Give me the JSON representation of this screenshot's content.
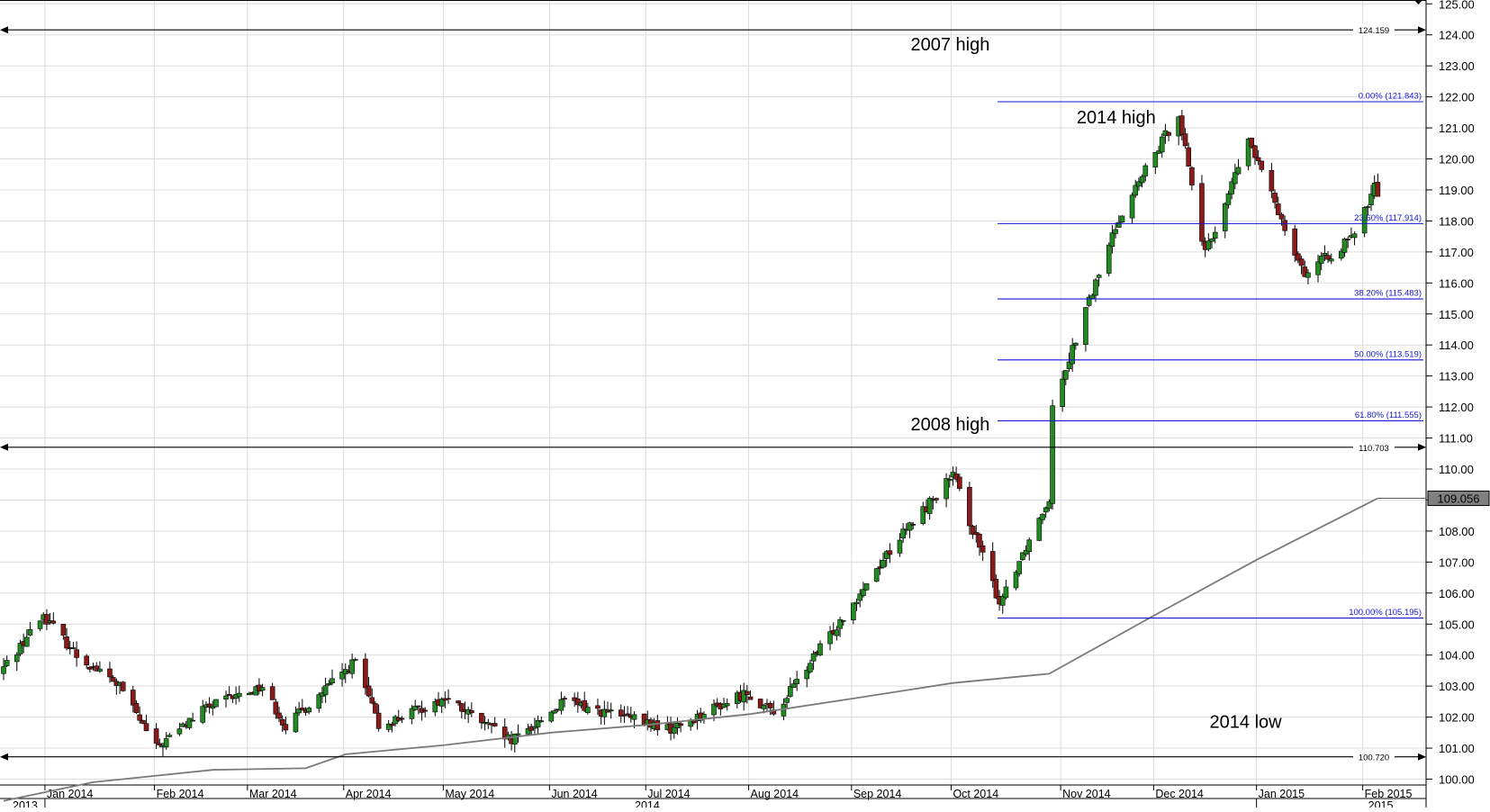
{
  "chart_data": {
    "type": "candlestick",
    "y_axis": {
      "min": 99.7,
      "max": 125.05,
      "position": "right",
      "ticks": [
        "100.00",
        "101.00",
        "102.00",
        "103.00",
        "104.00",
        "105.00",
        "106.00",
        "107.00",
        "108.00",
        "109.00",
        "110.00",
        "111.00",
        "112.00",
        "113.00",
        "114.00",
        "115.00",
        "116.00",
        "117.00",
        "118.00",
        "119.00",
        "120.00",
        "121.00",
        "122.00",
        "123.00",
        "124.00",
        "125.00"
      ]
    },
    "x_axis": {
      "months": [
        {
          "label": "Jan 2014",
          "date": "2014-01-01"
        },
        {
          "label": "Feb 2014",
          "date": "2014-02-03"
        },
        {
          "label": "Mar 2014",
          "date": "2014-03-03"
        },
        {
          "label": "Apr 2014",
          "date": "2014-04-01"
        },
        {
          "label": "May 2014",
          "date": "2014-05-01"
        },
        {
          "label": "Jun 2014",
          "date": "2014-06-02"
        },
        {
          "label": "Jul 2014",
          "date": "2014-07-01"
        },
        {
          "label": "Aug 2014",
          "date": "2014-08-01"
        },
        {
          "label": "Sep 2014",
          "date": "2014-09-01"
        },
        {
          "label": "Oct 2014",
          "date": "2014-10-01"
        },
        {
          "label": "Nov 2014",
          "date": "2014-11-03"
        },
        {
          "label": "Dec 2014",
          "date": "2014-12-01"
        },
        {
          "label": "Jan 2015",
          "date": "2015-01-01"
        },
        {
          "label": "Feb 2015",
          "date": "2015-02-02"
        }
      ],
      "years": [
        {
          "label": "2013",
          "position": "left edge"
        },
        {
          "label": "2014",
          "position": "center"
        },
        {
          "label": "2015",
          "position": "under Feb 2015"
        }
      ]
    },
    "ohlc_start": "2013-12-19",
    "ohlc_end": "2015-02-06",
    "ohlc_key_points": [
      {
        "date": "2013-12-19",
        "close": 103.6
      },
      {
        "date": "2013-12-31",
        "close": 105.3
      },
      {
        "date": "2014-01-10",
        "close": 104.0
      },
      {
        "date": "2014-01-23",
        "close": 103.0
      },
      {
        "date": "2014-02-03",
        "close": 101.0
      },
      {
        "date": "2014-02-18",
        "close": 102.3
      },
      {
        "date": "2014-03-07",
        "close": 103.0
      },
      {
        "date": "2014-03-14",
        "close": 101.7
      },
      {
        "date": "2014-04-04",
        "close": 103.8
      },
      {
        "date": "2014-04-11",
        "close": 101.7
      },
      {
        "date": "2014-05-01",
        "close": 102.6
      },
      {
        "date": "2014-05-21",
        "close": 101.2
      },
      {
        "date": "2014-06-06",
        "close": 102.5
      },
      {
        "date": "2014-07-08",
        "close": 101.6
      },
      {
        "date": "2014-07-31",
        "close": 102.8
      },
      {
        "date": "2014-08-08",
        "close": 102.1
      },
      {
        "date": "2014-08-20",
        "close": 103.9
      },
      {
        "date": "2014-09-12",
        "close": 107.4
      },
      {
        "date": "2014-10-01",
        "close": 109.8
      },
      {
        "date": "2014-10-15",
        "close": 105.7
      },
      {
        "date": "2014-10-30",
        "close": 109.1
      },
      {
        "date": "2014-10-31",
        "close": 112.1
      },
      {
        "date": "2014-11-20",
        "close": 118.1
      },
      {
        "date": "2014-12-08",
        "close": 121.5
      },
      {
        "date": "2014-12-16",
        "close": 116.9
      },
      {
        "date": "2014-12-29",
        "close": 120.6
      },
      {
        "date": "2015-01-15",
        "close": 116.3
      },
      {
        "date": "2015-01-30",
        "close": 117.5
      },
      {
        "date": "2015-02-05",
        "close": 119.1
      },
      {
        "date": "2015-02-06",
        "close": 118.9
      }
    ],
    "moving_average": {
      "current_value": "109.056",
      "points": [
        {
          "date": "2013-12-19",
          "value": 99.3
        },
        {
          "date": "2014-01-15",
          "value": 99.9
        },
        {
          "date": "2014-02-20",
          "value": 100.3
        },
        {
          "date": "2014-03-20",
          "value": 100.35
        },
        {
          "date": "2014-04-01",
          "value": 100.8
        },
        {
          "date": "2014-05-01",
          "value": 101.1
        },
        {
          "date": "2014-06-02",
          "value": 101.5
        },
        {
          "date": "2014-07-01",
          "value": 101.75
        },
        {
          "date": "2014-08-01",
          "value": 102.1
        },
        {
          "date": "2014-09-01",
          "value": 102.6
        },
        {
          "date": "2014-10-01",
          "value": 103.1
        },
        {
          "date": "2014-10-30",
          "value": 103.4
        },
        {
          "date": "2014-12-01",
          "value": 105.3
        },
        {
          "date": "2015-01-01",
          "value": 107.1
        },
        {
          "date": "2015-02-06",
          "value": 109.056
        }
      ]
    },
    "horizontal_lines": [
      {
        "value": 124.159,
        "label": "124.159"
      },
      {
        "value": 110.703,
        "label": "110.703"
      },
      {
        "value": 100.72,
        "label": "100.720"
      }
    ],
    "fibonacci": {
      "start_date": "2014-10-15",
      "levels": [
        {
          "value": 121.843,
          "label": "0.00% (121.843)"
        },
        {
          "value": 117.914,
          "label": "23.60% (117.914)"
        },
        {
          "value": 115.483,
          "label": "38.20% (115.483)"
        },
        {
          "value": 113.519,
          "label": "50.00% (113.519)"
        },
        {
          "value": 111.555,
          "label": "61.80% (111.555)"
        },
        {
          "value": 105.195,
          "label": "100.00% (105.195)"
        }
      ]
    },
    "annotations": [
      {
        "text": "2007 high",
        "date": "2014-10-01",
        "value": 123.5
      },
      {
        "text": "2014 high",
        "date": "2014-11-20",
        "value": 121.15
      },
      {
        "text": "2008 high",
        "date": "2014-10-01",
        "value": 111.25
      },
      {
        "text": "2014 low",
        "date": "2014-12-29",
        "value": 101.65
      }
    ],
    "colors": {
      "up": "#228b22",
      "down": "#8b1a1a",
      "wick": "#000000",
      "fib": "#1515d6",
      "ma": "#7a7a7a",
      "grid": "#dcdcdc",
      "price_box": "#808080"
    }
  }
}
